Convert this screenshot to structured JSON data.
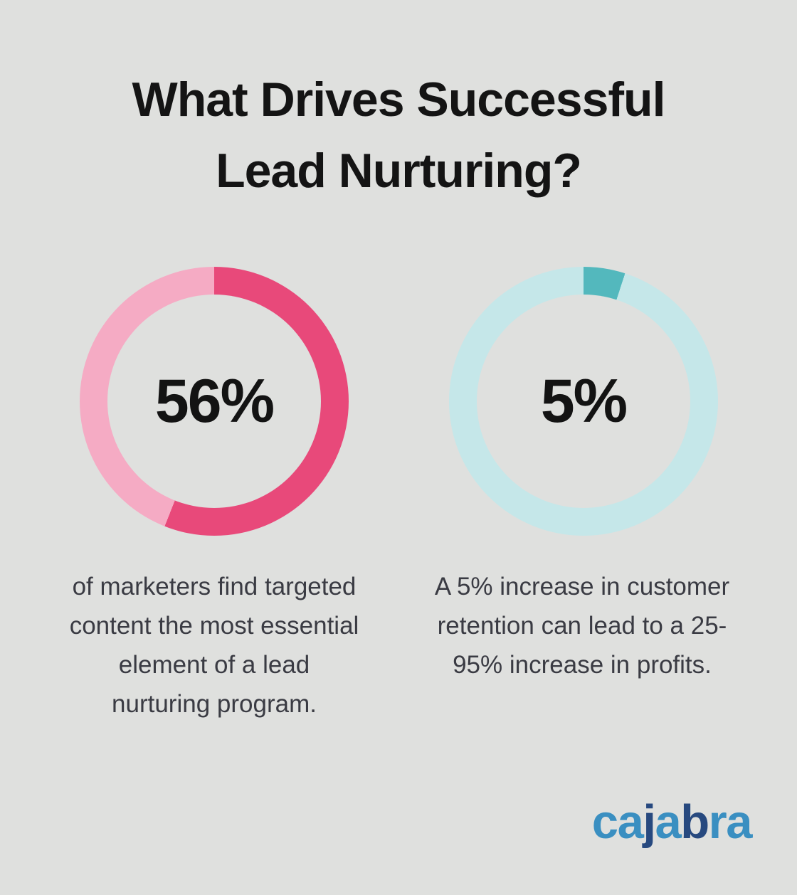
{
  "page": {
    "background_color": "#dfe0de"
  },
  "title": {
    "line1": "What Drives Successful",
    "line2": "Lead Nurturing?"
  },
  "chart_data": [
    {
      "type": "pie",
      "subtype": "donut",
      "center_label": "56%",
      "value": 56,
      "remainder": 44,
      "color": "#e8497a",
      "track_color": "#f5abc4",
      "start_angle_deg": 0,
      "direction": "clockwise",
      "caption_lines": [
        "of marketers find targeted",
        "content the most essential",
        "element of a lead",
        "nurturing program."
      ]
    },
    {
      "type": "pie",
      "subtype": "donut",
      "center_label": "5%",
      "value": 5,
      "remainder": 95,
      "color": "#53b8bd",
      "track_color": "#c5e7e9",
      "start_angle_deg": 0,
      "direction": "clockwise",
      "caption_lines": [
        "A 5% increase in customer",
        "retention can lead to a 25-",
        "95% increase in profits."
      ]
    }
  ],
  "logo": {
    "text": "cajabra",
    "light_blue": "#3a8fc1",
    "navy": "#27497f",
    "letters": [
      {
        "char": "c",
        "color": "#3a8fc1"
      },
      {
        "char": "a",
        "color": "#3a8fc1"
      },
      {
        "char": "j",
        "color": "#27497f"
      },
      {
        "char": "a",
        "color": "#3a8fc1"
      },
      {
        "char": "b",
        "color": "#27497f"
      },
      {
        "char": "r",
        "color": "#3a8fc1"
      },
      {
        "char": "a",
        "color": "#3a8fc1"
      }
    ]
  }
}
